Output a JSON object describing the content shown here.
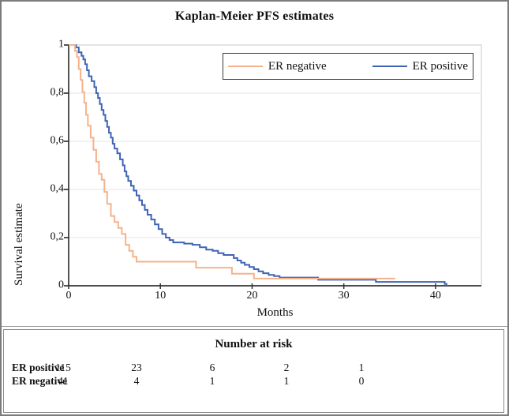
{
  "figure": {
    "title": "Kaplan-Meier PFS estimates"
  },
  "chart_data": {
    "type": "line",
    "subtype": "kaplan-meier-step",
    "title": "Kaplan-Meier PFS estimates",
    "xlabel": "Months",
    "ylabel": "Survival estimate",
    "xlim": [
      0,
      45
    ],
    "ylim": [
      0,
      1
    ],
    "x_ticks": [
      0,
      10,
      20,
      30,
      40
    ],
    "x_tick_labels": [
      "0",
      "10",
      "20",
      "30",
      "40"
    ],
    "y_ticks": [
      0,
      0.2,
      0.4,
      0.6,
      0.8,
      1
    ],
    "y_tick_labels": [
      "0",
      "0,2",
      "0,4",
      "0,6",
      "0,8",
      "1"
    ],
    "grid": "horizontal-light",
    "legend_position": "top-inside-framed",
    "colors": {
      "er_negative": "#f6b28b",
      "er_positive": "#3f63b4",
      "gridline": "#e4e4e4",
      "plot_border": "#c9c9c9",
      "x_axis": "#4d4d4d",
      "y_axis": "#1a1a1a"
    },
    "series": [
      {
        "name": "ER negative",
        "color": "#f6b28b",
        "points": [
          [
            0,
            1.0
          ],
          [
            0.7,
            0.975
          ],
          [
            0.9,
            0.95
          ],
          [
            1.1,
            0.9
          ],
          [
            1.3,
            0.855
          ],
          [
            1.5,
            0.805
          ],
          [
            1.7,
            0.76
          ],
          [
            1.9,
            0.71
          ],
          [
            2.1,
            0.665
          ],
          [
            2.4,
            0.615
          ],
          [
            2.7,
            0.565
          ],
          [
            3.0,
            0.515
          ],
          [
            3.3,
            0.465
          ],
          [
            3.6,
            0.44
          ],
          [
            3.9,
            0.39
          ],
          [
            4.2,
            0.34
          ],
          [
            4.6,
            0.29
          ],
          [
            5.0,
            0.265
          ],
          [
            5.4,
            0.24
          ],
          [
            5.8,
            0.215
          ],
          [
            6.2,
            0.17
          ],
          [
            6.6,
            0.145
          ],
          [
            7.0,
            0.12
          ],
          [
            7.4,
            0.1
          ],
          [
            13.9,
            0.075
          ],
          [
            17.8,
            0.05
          ],
          [
            20.2,
            0.03
          ],
          [
            35.6,
            0.03
          ]
        ]
      },
      {
        "name": "ER positive",
        "color": "#3f63b4",
        "points": [
          [
            0,
            1.0
          ],
          [
            0.8,
            0.99
          ],
          [
            1.1,
            0.97
          ],
          [
            1.4,
            0.955
          ],
          [
            1.6,
            0.94
          ],
          [
            1.8,
            0.92
          ],
          [
            2.0,
            0.895
          ],
          [
            2.2,
            0.87
          ],
          [
            2.5,
            0.85
          ],
          [
            2.8,
            0.825
          ],
          [
            3.0,
            0.8
          ],
          [
            3.2,
            0.78
          ],
          [
            3.4,
            0.755
          ],
          [
            3.6,
            0.73
          ],
          [
            3.8,
            0.71
          ],
          [
            4.0,
            0.685
          ],
          [
            4.2,
            0.66
          ],
          [
            4.4,
            0.635
          ],
          [
            4.6,
            0.615
          ],
          [
            4.8,
            0.59
          ],
          [
            5.0,
            0.57
          ],
          [
            5.3,
            0.55
          ],
          [
            5.6,
            0.525
          ],
          [
            5.9,
            0.5
          ],
          [
            6.1,
            0.475
          ],
          [
            6.3,
            0.455
          ],
          [
            6.5,
            0.435
          ],
          [
            6.8,
            0.415
          ],
          [
            7.1,
            0.395
          ],
          [
            7.4,
            0.375
          ],
          [
            7.7,
            0.355
          ],
          [
            8.0,
            0.335
          ],
          [
            8.3,
            0.315
          ],
          [
            8.6,
            0.295
          ],
          [
            9.0,
            0.275
          ],
          [
            9.4,
            0.255
          ],
          [
            9.8,
            0.235
          ],
          [
            10.2,
            0.215
          ],
          [
            10.6,
            0.2
          ],
          [
            11.0,
            0.19
          ],
          [
            11.4,
            0.18
          ],
          [
            12.6,
            0.175
          ],
          [
            13.5,
            0.17
          ],
          [
            14.3,
            0.16
          ],
          [
            15.0,
            0.15
          ],
          [
            15.7,
            0.145
          ],
          [
            16.3,
            0.135
          ],
          [
            16.9,
            0.128
          ],
          [
            18.0,
            0.115
          ],
          [
            18.4,
            0.105
          ],
          [
            18.8,
            0.096
          ],
          [
            19.2,
            0.087
          ],
          [
            19.7,
            0.078
          ],
          [
            20.2,
            0.069
          ],
          [
            20.7,
            0.06
          ],
          [
            21.2,
            0.052
          ],
          [
            21.8,
            0.045
          ],
          [
            22.4,
            0.04
          ],
          [
            23.0,
            0.034
          ],
          [
            27.2,
            0.025
          ],
          [
            33.5,
            0.016
          ],
          [
            41.0,
            0.008
          ],
          [
            41.2,
            0.0
          ]
        ]
      }
    ]
  },
  "risk_table": {
    "title": "Number at risk",
    "time_points": [
      0,
      10,
      20,
      30,
      40
    ],
    "rows": [
      {
        "label": "ER positive",
        "values": [
          "115",
          "23",
          "6",
          "2",
          "1"
        ]
      },
      {
        "label": "ER negative",
        "values": [
          "41",
          "4",
          "1",
          "1",
          "0"
        ]
      }
    ]
  }
}
